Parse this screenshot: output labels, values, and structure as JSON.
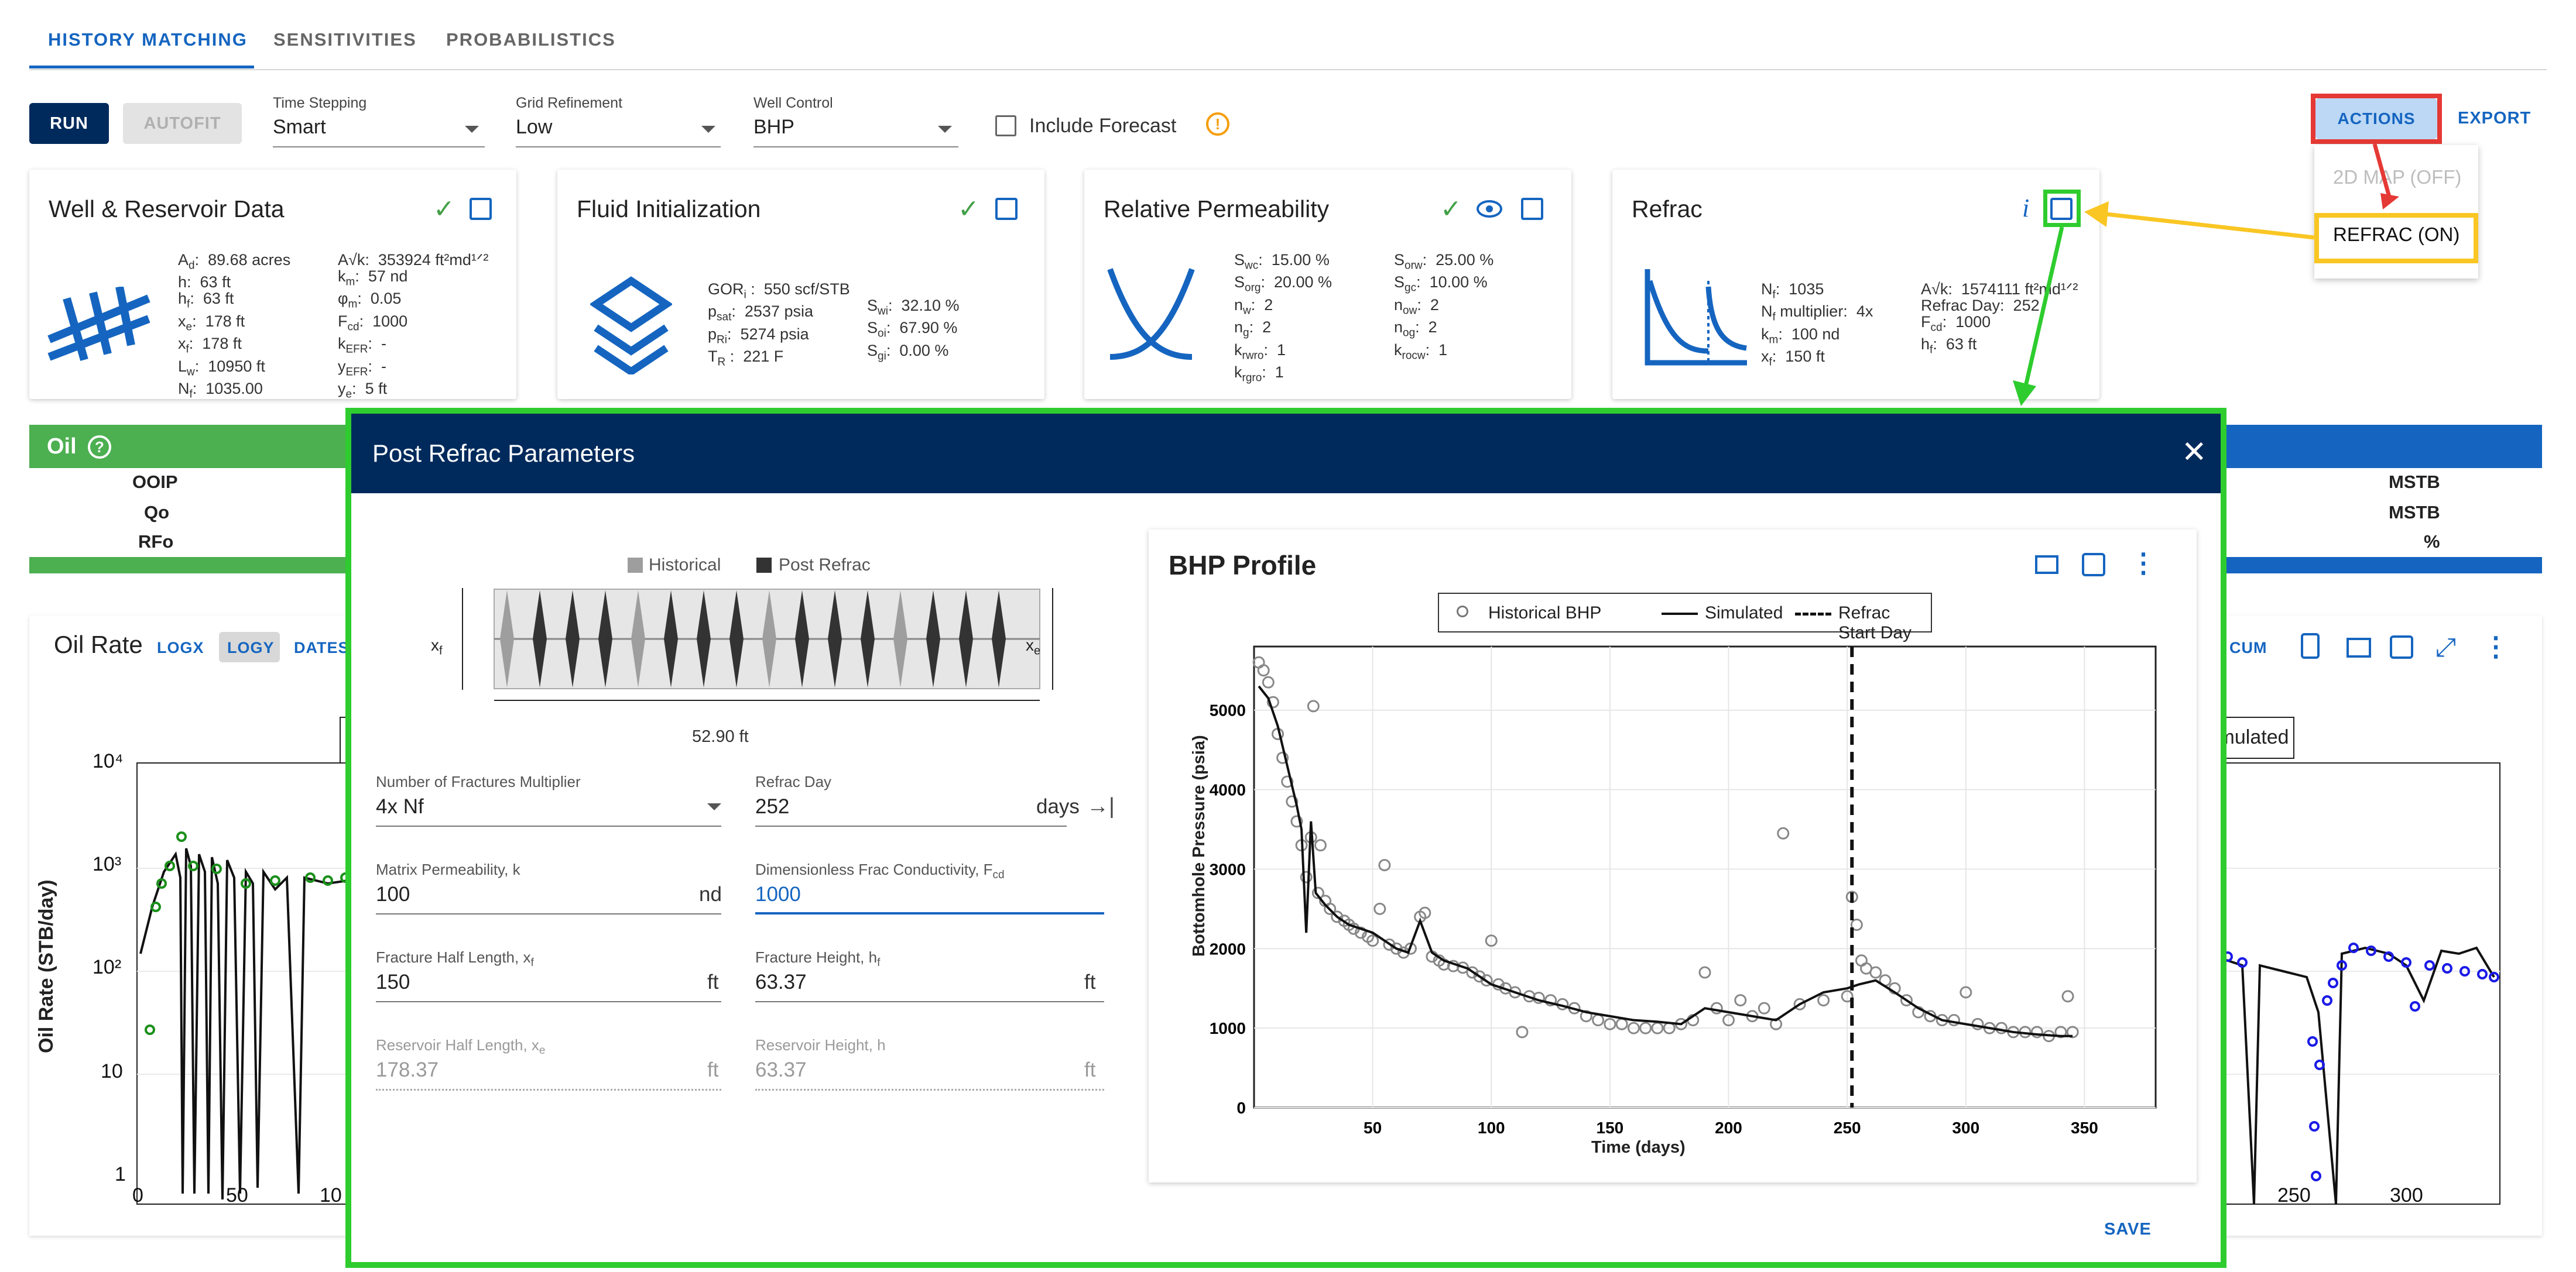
{
  "tabs": [
    {
      "label": "HISTORY MATCHING"
    },
    {
      "label": "SENSITIVITIES"
    },
    {
      "label": "PROBABILISTICS"
    }
  ],
  "toolbar": {
    "run_label": "RUN",
    "autofit_label": "AUTOFIT",
    "time_stepping": {
      "label": "Time Stepping",
      "value": "Smart"
    },
    "grid_refinement": {
      "label": "Grid Refinement",
      "value": "Low"
    },
    "well_control": {
      "label": "Well Control",
      "value": "BHP"
    },
    "include_forecast_label": "Include Forecast",
    "include_forecast_checked": false,
    "warning_icon": "exclamation-circle-icon",
    "actions_label": "ACTIONS",
    "export_label": "EXPORT"
  },
  "actions_menu": {
    "items": [
      {
        "label": "2D MAP (OFF)",
        "disabled": true
      },
      {
        "label": "REFRAC (ON)",
        "disabled": false
      }
    ]
  },
  "cards": {
    "well": {
      "title": "Well & Reservoir Data",
      "col1": [
        {
          "sym": "A",
          "sub": "d",
          "val": ":  89.68 acres"
        },
        {
          "sym": "h",
          "sub": "",
          "val": ":  63 ft"
        },
        {
          "sym": "h",
          "sub": "f",
          "val": ":  63 ft"
        },
        {
          "sym": "x",
          "sub": "e",
          "val": ":  178 ft"
        },
        {
          "sym": "x",
          "sub": "f",
          "val": ":  178 ft"
        },
        {
          "sym": "L",
          "sub": "w",
          "val": ":  10950 ft"
        },
        {
          "sym": "N",
          "sub": "f",
          "val": ":  1035.00"
        }
      ],
      "col2": [
        {
          "sym": "A√k",
          "sub": "",
          "val": ":  353924 ft²md¹ᐟ²"
        },
        {
          "sym": "k",
          "sub": "m",
          "val": ":  57 nd"
        },
        {
          "sym": "φ",
          "sub": "m",
          "val": ":  0.05"
        },
        {
          "sym": "F",
          "sub": "cd",
          "val": ":  1000"
        },
        {
          "sym": "k",
          "sub": "EFR",
          "val": ":  -"
        },
        {
          "sym": "y",
          "sub": "EFR",
          "val": ":  -"
        },
        {
          "sym": "y",
          "sub": "e",
          "val": ":  5 ft"
        }
      ]
    },
    "fluid": {
      "title": "Fluid Initialization",
      "col1": [
        {
          "sym": "GOR",
          "sub": "i",
          "val": " :  550 scf/STB"
        },
        {
          "sym": "p",
          "sub": "sat",
          "val": ":  2537 psia"
        },
        {
          "sym": "p",
          "sub": "Ri",
          "val": ":  5274 psia"
        },
        {
          "sym": "T",
          "sub": "R",
          "val": " :  221 F"
        }
      ],
      "col2": [
        {
          "sym": "S",
          "sub": "wi",
          "val": ":  32.10 %"
        },
        {
          "sym": "S",
          "sub": "oi",
          "val": ":  67.90 %"
        },
        {
          "sym": "S",
          "sub": "gi",
          "val": ":  0.00 %"
        }
      ]
    },
    "relperm": {
      "title": "Relative Permeability",
      "col1": [
        {
          "sym": "S",
          "sub": "wc",
          "val": ":  15.00 %"
        },
        {
          "sym": "S",
          "sub": "org",
          "val": ":  20.00 %"
        },
        {
          "sym": "n",
          "sub": "w",
          "val": ":  2"
        },
        {
          "sym": "n",
          "sub": "g",
          "val": ":  2"
        },
        {
          "sym": "k",
          "sub": "rwro",
          "val": ":  1"
        },
        {
          "sym": "k",
          "sub": "rgro",
          "val": ":  1"
        }
      ],
      "col2": [
        {
          "sym": "S",
          "sub": "orw",
          "val": ":  25.00 %"
        },
        {
          "sym": "S",
          "sub": "gc",
          "val": ":  10.00 %"
        },
        {
          "sym": "n",
          "sub": "ow",
          "val": ":  2"
        },
        {
          "sym": "n",
          "sub": "og",
          "val": ":  2"
        },
        {
          "sym": "k",
          "sub": "rocw",
          "val": ":  1"
        }
      ]
    },
    "refrac": {
      "title": "Refrac",
      "col1": [
        {
          "sym": "N",
          "sub": "f",
          "val": ":  1035"
        },
        {
          "sym": "N",
          "sub": "f",
          "val": " multiplier:  4x"
        },
        {
          "sym": "k",
          "sub": "m",
          "val": ":  100 nd"
        },
        {
          "sym": "x",
          "sub": "f",
          "val": ":  150 ft"
        }
      ],
      "col2": [
        {
          "sym": "A√k",
          "sub": "",
          "val": ":  1574111 ft²md¹ᐟ²"
        },
        {
          "sym": "Refrac Day",
          "sub": "",
          "val": ":  252"
        },
        {
          "sym": "F",
          "sub": "cd",
          "val": ":  1000"
        },
        {
          "sym": "h",
          "sub": "f",
          "val": ":  63 ft"
        }
      ]
    }
  },
  "oil_panel": {
    "title": "Oil",
    "rows_left": [
      "OOIP",
      "Qo",
      "RFo"
    ],
    "rows_right": [
      "MSTB",
      "MSTB",
      "%"
    ]
  },
  "oil_rate_chart": {
    "title": "Oil Rate",
    "toggles": [
      "LOGX",
      "LOGY",
      "DATES"
    ],
    "cum_label": "CUM",
    "legend_partial": "imulated"
  },
  "modal": {
    "title": "Post Refrac Parameters",
    "save_label": "SAVE",
    "frac_diagram": {
      "legend_historical": "Historical",
      "legend_post": "Post Refrac",
      "spacing_label": "52.90 ft",
      "xf_label": "x",
      "xf_sub": "f",
      "xe_label": "x",
      "xe_sub": "e"
    },
    "fields": {
      "num_frac_mult": {
        "label": "Number of Fractures Multiplier",
        "value": "4x Nf"
      },
      "refrac_day": {
        "label": "Refrac Day",
        "value": "252",
        "unit": "days"
      },
      "matrix_perm": {
        "label": "Matrix Permeability, k",
        "value": "100",
        "unit": "nd"
      },
      "fcd": {
        "label": "Dimensionless Frac Conductivity, F",
        "label_sub": "cd",
        "value": "1000"
      },
      "xf": {
        "label": "Fracture Half Length, x",
        "label_sub": "f",
        "value": "150",
        "unit": "ft"
      },
      "hf": {
        "label": "Fracture Height, h",
        "label_sub": "f",
        "value": "63.37",
        "unit": "ft"
      },
      "xe": {
        "label": "Reservoir Half Length, x",
        "label_sub": "e",
        "value": "178.37",
        "unit": "ft"
      },
      "h": {
        "label": "Reservoir Height, h",
        "value": "63.37",
        "unit": "ft"
      }
    }
  },
  "colors": {
    "primary_dark": "#002a5c",
    "primary": "#1565c0",
    "green": "#4caf50",
    "annotation_red": "#e53935",
    "annotation_yellow": "#f9c623",
    "annotation_green": "#2ecc2e"
  },
  "chart_data": [
    {
      "type": "scatter",
      "title": "BHP Profile",
      "xlabel": "Time (days)",
      "ylabel": "Bottomhole Pressure (psia)",
      "xlim": [
        0,
        380
      ],
      "ylim": [
        0,
        5800
      ],
      "xticks": [
        50,
        100,
        150,
        200,
        250,
        300,
        350
      ],
      "yticks": [
        0,
        1000,
        2000,
        3000,
        4000,
        5000
      ],
      "grid": true,
      "legend_position": "top",
      "legend": [
        "Historical BHP",
        "Simulated",
        "Refrac Start Day"
      ],
      "refrac_start_day": 252,
      "series": [
        {
          "name": "Historical BHP",
          "style": "open-circle",
          "points": [
            [
              2,
              5600
            ],
            [
              4,
              5500
            ],
            [
              6,
              5350
            ],
            [
              8,
              5100
            ],
            [
              10,
              4700
            ],
            [
              12,
              4400
            ],
            [
              14,
              4100
            ],
            [
              16,
              3850
            ],
            [
              18,
              3600
            ],
            [
              20,
              3300
            ],
            [
              22,
              2900
            ],
            [
              24,
              3400
            ],
            [
              25,
              5050
            ],
            [
              27,
              2700
            ],
            [
              28,
              3300
            ],
            [
              30,
              2600
            ],
            [
              32,
              2500
            ],
            [
              35,
              2400
            ],
            [
              38,
              2350
            ],
            [
              40,
              2300
            ],
            [
              42,
              2250
            ],
            [
              45,
              2200
            ],
            [
              48,
              2150
            ],
            [
              50,
              2100
            ],
            [
              53,
              2500
            ],
            [
              55,
              3050
            ],
            [
              57,
              2050
            ],
            [
              60,
              2000
            ],
            [
              63,
              1950
            ],
            [
              66,
              2000
            ],
            [
              70,
              2400
            ],
            [
              72,
              2450
            ],
            [
              75,
              1900
            ],
            [
              78,
              1850
            ],
            [
              80,
              1800
            ],
            [
              84,
              1780
            ],
            [
              88,
              1760
            ],
            [
              92,
              1700
            ],
            [
              95,
              1650
            ],
            [
              98,
              1600
            ],
            [
              100,
              2100
            ],
            [
              103,
              1550
            ],
            [
              106,
              1500
            ],
            [
              110,
              1450
            ],
            [
              113,
              950
            ],
            [
              116,
              1400
            ],
            [
              120,
              1380
            ],
            [
              125,
              1350
            ],
            [
              130,
              1300
            ],
            [
              135,
              1250
            ],
            [
              140,
              1150
            ],
            [
              145,
              1100
            ],
            [
              150,
              1050
            ],
            [
              155,
              1050
            ],
            [
              160,
              1000
            ],
            [
              165,
              1000
            ],
            [
              170,
              1000
            ],
            [
              175,
              1000
            ],
            [
              180,
              1050
            ],
            [
              185,
              1100
            ],
            [
              190,
              1700
            ],
            [
              195,
              1250
            ],
            [
              200,
              1100
            ],
            [
              205,
              1350
            ],
            [
              210,
              1150
            ],
            [
              215,
              1250
            ],
            [
              220,
              1050
            ],
            [
              223,
              3450
            ],
            [
              230,
              1300
            ],
            [
              240,
              1350
            ],
            [
              250,
              1400
            ],
            [
              252,
              2650
            ],
            [
              254,
              2300
            ],
            [
              256,
              1850
            ],
            [
              258,
              1750
            ],
            [
              262,
              1700
            ],
            [
              266,
              1600
            ],
            [
              270,
              1500
            ],
            [
              275,
              1350
            ],
            [
              280,
              1200
            ],
            [
              285,
              1150
            ],
            [
              290,
              1100
            ],
            [
              295,
              1100
            ],
            [
              300,
              1450
            ],
            [
              305,
              1050
            ],
            [
              310,
              1000
            ],
            [
              315,
              1000
            ],
            [
              320,
              950
            ],
            [
              325,
              950
            ],
            [
              330,
              950
            ],
            [
              335,
              900
            ],
            [
              340,
              950
            ],
            [
              343,
              1400
            ],
            [
              345,
              950
            ]
          ]
        },
        {
          "name": "Simulated",
          "style": "line",
          "points": [
            [
              2,
              5300
            ],
            [
              6,
              5150
            ],
            [
              10,
              4800
            ],
            [
              14,
              4300
            ],
            [
              18,
              3800
            ],
            [
              20,
              3500
            ],
            [
              22,
              2200
            ],
            [
              24,
              3600
            ],
            [
              26,
              2700
            ],
            [
              30,
              2550
            ],
            [
              35,
              2400
            ],
            [
              40,
              2300
            ],
            [
              45,
              2250
            ],
            [
              50,
              2200
            ],
            [
              55,
              2100
            ],
            [
              60,
              2000
            ],
            [
              65,
              1950
            ],
            [
              70,
              2350
            ],
            [
              75,
              1950
            ],
            [
              80,
              1850
            ],
            [
              90,
              1750
            ],
            [
              100,
              1550
            ],
            [
              110,
              1450
            ],
            [
              120,
              1350
            ],
            [
              130,
              1280
            ],
            [
              140,
              1200
            ],
            [
              150,
              1150
            ],
            [
              160,
              1100
            ],
            [
              170,
              1080
            ],
            [
              180,
              1050
            ],
            [
              190,
              1250
            ],
            [
              200,
              1200
            ],
            [
              210,
              1150
            ],
            [
              220,
              1100
            ],
            [
              230,
              1300
            ],
            [
              240,
              1450
            ],
            [
              250,
              1500
            ],
            [
              255,
              1550
            ],
            [
              262,
              1600
            ],
            [
              270,
              1450
            ],
            [
              280,
              1250
            ],
            [
              290,
              1100
            ],
            [
              300,
              1050
            ],
            [
              310,
              1000
            ],
            [
              320,
              950
            ],
            [
              330,
              920
            ],
            [
              340,
              900
            ],
            [
              345,
              900
            ]
          ]
        }
      ]
    }
  ]
}
